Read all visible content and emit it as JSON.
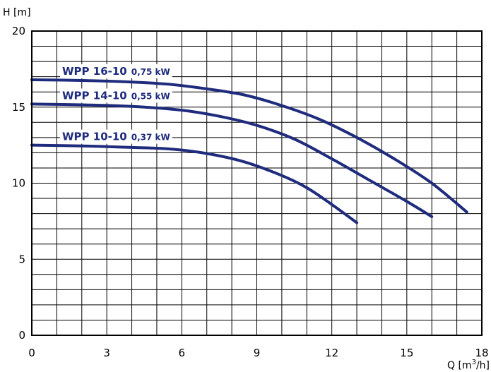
{
  "chart_data": {
    "type": "line",
    "ylabel": "H [m]",
    "xlabel_prefix": "Q [m",
    "xlabel_sup": "3",
    "xlabel_suffix": "/h]",
    "xlim": [
      0,
      18
    ],
    "ylim": [
      0,
      20
    ],
    "x_ticks": [
      0,
      3,
      6,
      9,
      12,
      15,
      18
    ],
    "y_ticks": [
      0,
      5,
      10,
      15,
      20
    ],
    "x_tick_labels": [
      "0",
      "3",
      "6",
      "9",
      "12",
      "15",
      "18"
    ],
    "y_tick_labels": [
      "0",
      "5",
      "10",
      "15",
      "20"
    ],
    "x_minor_step": 1,
    "y_minor_step": 1,
    "grid": true,
    "line_color": "#1f2c7d",
    "series": [
      {
        "name": "WPP 16-10",
        "power": "0,75 kW",
        "x": [
          0,
          2,
          4,
          5.5,
          7,
          8.5,
          10,
          11.5,
          13,
          14.5,
          16,
          17.4
        ],
        "y": [
          16.8,
          16.75,
          16.65,
          16.5,
          16.2,
          15.8,
          15.1,
          14.2,
          13.0,
          11.6,
          10.0,
          8.1
        ]
      },
      {
        "name": "WPP 14-10",
        "power": "0,55 kW",
        "x": [
          0,
          2,
          4,
          6,
          7.5,
          9,
          10.5,
          12,
          13.5,
          15,
          16
        ],
        "y": [
          15.2,
          15.15,
          15.05,
          14.8,
          14.4,
          13.8,
          12.9,
          11.6,
          10.2,
          8.8,
          7.8
        ]
      },
      {
        "name": "WPP 10-10",
        "power": "0,37 kW",
        "x": [
          0,
          2,
          4,
          5.5,
          7,
          8.5,
          10,
          11,
          12,
          13
        ],
        "y": [
          12.5,
          12.45,
          12.35,
          12.25,
          11.95,
          11.4,
          10.5,
          9.7,
          8.6,
          7.4
        ]
      }
    ]
  }
}
